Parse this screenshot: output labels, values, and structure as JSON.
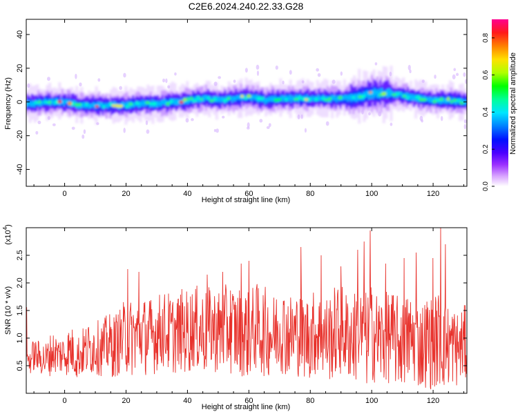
{
  "figure": {
    "title": "C2E6.2024.240.22.33.G28"
  },
  "chart_data": [
    {
      "type": "heatmap",
      "xlabel": "Height of straight line (km)",
      "ylabel": "Frequency (Hz)",
      "xlim": [
        -12.5,
        131
      ],
      "ylim": [
        -50,
        49
      ],
      "xticks": [
        0,
        20,
        40,
        60,
        80,
        100,
        120
      ],
      "xtick_labels": [
        "0",
        "20",
        "40",
        "60",
        "80",
        "100",
        "120"
      ],
      "yticks": [
        -40,
        -20,
        0,
        20,
        40
      ],
      "ytick_labels": [
        "-40",
        "-20",
        "0",
        "20",
        "40"
      ],
      "grid": false,
      "description_of_values": "Spectral energy concentrated in a band near 0 Hz across the full height range; band centre drifts between about -3 Hz and +6 Hz, widest near 95-105 km.",
      "band_center_profile": {
        "x": [
          -12,
          -5,
          0,
          5,
          10,
          15,
          20,
          25,
          30,
          35,
          40,
          45,
          50,
          55,
          60,
          65,
          70,
          75,
          80,
          85,
          90,
          95,
          100,
          105,
          110,
          115,
          120,
          125,
          130
        ],
        "y": [
          -1,
          0,
          0,
          -2,
          -2,
          -2,
          -2,
          -1,
          -1,
          0,
          1,
          2,
          1,
          2,
          3,
          1,
          2,
          2,
          2,
          2,
          2,
          3,
          5,
          5,
          4,
          2,
          1,
          1,
          0
        ]
      },
      "colorbar": {
        "label": "Normalized spectral amplitude",
        "range": [
          0.0,
          0.9
        ],
        "ticks": [
          0.0,
          0.2,
          0.4,
          0.6,
          0.8
        ],
        "tick_labels": [
          "0.0",
          "0.2",
          "0.4",
          "0.6",
          "0.8"
        ],
        "colors": [
          "#ffffff",
          "#cc66ff",
          "#6600ff",
          "#0000ff",
          "#00aaff",
          "#00ffcc",
          "#00ff00",
          "#ccff00",
          "#ffcc00",
          "#ff6600",
          "#ff0000",
          "#ff00aa"
        ]
      }
    },
    {
      "type": "line",
      "xlabel": "Height of straight line (km)",
      "ylabel": "SNR (10 * v/v)",
      "scale_label": "(x10",
      "scale_exponent": "4",
      "xlim": [
        -12.5,
        131
      ],
      "ylim": [
        0,
        3.0
      ],
      "xticks": [
        0,
        20,
        40,
        60,
        80,
        100,
        120
      ],
      "xtick_labels": [
        "0",
        "20",
        "40",
        "60",
        "80",
        "100",
        "120"
      ],
      "yticks": [
        0.5,
        1.0,
        1.5,
        2.0,
        2.5
      ],
      "ytick_labels": [
        "0.5",
        "1.0",
        "1.5",
        "2.0",
        "2.5"
      ],
      "grid": false,
      "line_color": "#e8322c",
      "series": [
        {
          "x": [
            -12,
            -10,
            -8,
            -6,
            -4,
            -2,
            0,
            2,
            4,
            6,
            8,
            10,
            12,
            14,
            16,
            18,
            20,
            22,
            24,
            26,
            28,
            30,
            32,
            34,
            36,
            38,
            40,
            42,
            44,
            46,
            48,
            50,
            52,
            54,
            56,
            58,
            60,
            62,
            64,
            66,
            68,
            70,
            72,
            74,
            76,
            78,
            80,
            82,
            84,
            86,
            88,
            90,
            92,
            94,
            96,
            98,
            100,
            102,
            104,
            106,
            108,
            110,
            112,
            114,
            116,
            118,
            120,
            122,
            124,
            126,
            128,
            130
          ],
          "values": [
            0.55,
            0.7,
            0.65,
            0.6,
            0.75,
            0.7,
            0.7,
            0.8,
            0.65,
            0.75,
            0.8,
            0.85,
            0.8,
            0.9,
            0.85,
            0.95,
            1.05,
            1.0,
            1.1,
            1.05,
            1.0,
            1.1,
            1.15,
            1.1,
            1.05,
            1.15,
            1.1,
            1.2,
            1.15,
            1.1,
            1.2,
            1.1,
            1.15,
            1.2,
            1.1,
            1.15,
            1.05,
            1.2,
            1.15,
            1.1,
            1.05,
            1.2,
            1.1,
            1.05,
            1.1,
            1.0,
            1.05,
            1.1,
            1.05,
            1.0,
            1.1,
            1.15,
            1.05,
            1.0,
            1.1,
            0.95,
            1.1,
            1.0,
            0.95,
            1.05,
            0.95,
            0.9,
            1.0,
            0.95,
            0.85,
            0.95,
            0.9,
            1.0,
            0.85,
            0.9,
            0.8,
            0.9
          ],
          "spread": [
            0.25,
            0.3,
            0.3,
            0.35,
            0.4,
            0.35,
            0.4,
            0.45,
            0.4,
            0.45,
            0.5,
            0.5,
            0.5,
            0.55,
            0.6,
            0.6,
            0.7,
            0.7,
            0.65,
            0.7,
            0.75,
            0.7,
            0.7,
            0.75,
            0.7,
            0.75,
            0.8,
            0.75,
            0.8,
            0.8,
            0.75,
            0.8,
            0.8,
            0.85,
            0.8,
            0.85,
            0.8,
            0.8,
            0.85,
            0.8,
            0.75,
            0.8,
            0.8,
            0.75,
            0.8,
            0.75,
            0.8,
            0.8,
            0.75,
            0.8,
            0.85,
            0.85,
            0.8,
            0.85,
            0.85,
            0.9,
            0.9,
            0.85,
            0.85,
            0.85,
            0.85,
            0.8,
            0.85,
            0.8,
            0.8,
            0.85,
            0.85,
            0.9,
            0.8,
            0.75,
            0.7,
            0.7
          ],
          "peaks": [
            {
              "x": 20.5,
              "y": 2.25
            },
            {
              "x": 24.2,
              "y": 2.2
            },
            {
              "x": 46.5,
              "y": 2.15
            },
            {
              "x": 51.5,
              "y": 2.2
            },
            {
              "x": 57.5,
              "y": 2.35
            },
            {
              "x": 60.0,
              "y": 2.4
            },
            {
              "x": 77.0,
              "y": 2.65
            },
            {
              "x": 83.5,
              "y": 2.5
            },
            {
              "x": 90.0,
              "y": 2.3
            },
            {
              "x": 95.5,
              "y": 2.6
            },
            {
              "x": 97.5,
              "y": 2.75
            },
            {
              "x": 99.5,
              "y": 2.95
            },
            {
              "x": 104.5,
              "y": 2.35
            },
            {
              "x": 110.5,
              "y": 2.45
            },
            {
              "x": 114.5,
              "y": 2.55
            },
            {
              "x": 120.0,
              "y": 2.45
            },
            {
              "x": 122.5,
              "y": 3.0
            },
            {
              "x": 124.0,
              "y": 2.7
            }
          ]
        }
      ]
    }
  ]
}
